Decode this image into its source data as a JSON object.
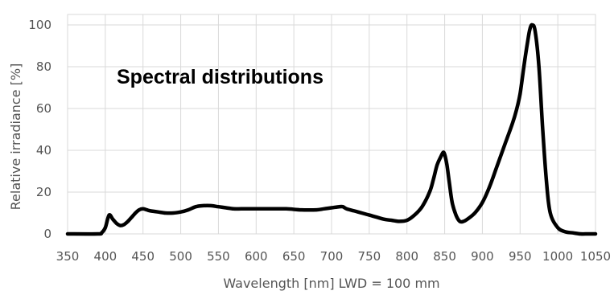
{
  "chart_data": {
    "type": "line",
    "title": "Spectral distributions",
    "xlabel": "Wavelength [nm] LWD = 100 mm",
    "ylabel": "Relative irradiance [%]",
    "xlim": [
      350,
      1050
    ],
    "ylim": [
      0,
      105
    ],
    "xticks": [
      350,
      400,
      450,
      500,
      550,
      600,
      650,
      700,
      750,
      800,
      850,
      900,
      950,
      1000,
      1050
    ],
    "yticks": [
      0,
      20,
      40,
      60,
      80,
      100
    ],
    "grid": true,
    "legend": "none",
    "line_color": "#000000",
    "grid_color": "#d9d9d9",
    "series": [
      {
        "x": [
          350,
          390,
          395,
          400,
          405,
          410,
          415,
          420,
          425,
          430,
          435,
          440,
          445,
          450,
          455,
          460,
          470,
          480,
          490,
          500,
          510,
          520,
          530,
          540,
          550,
          560,
          570,
          580,
          590,
          600,
          620,
          640,
          660,
          680,
          690,
          700,
          710,
          715,
          720,
          730,
          740,
          750,
          760,
          770,
          780,
          790,
          800,
          810,
          820,
          830,
          835,
          840,
          845,
          848,
          850,
          853,
          856,
          860,
          865,
          870,
          875,
          880,
          890,
          900,
          910,
          920,
          930,
          940,
          945,
          950,
          955,
          960,
          963,
          966,
          970,
          975,
          980,
          985,
          990,
          1000,
          1010,
          1020,
          1030,
          1040,
          1050
        ],
        "y": [
          0,
          0,
          0.5,
          3,
          9,
          7,
          5,
          4,
          4.5,
          6,
          8,
          10,
          11.5,
          12,
          11.5,
          11,
          10.5,
          10,
          10,
          10.5,
          11.5,
          13,
          13.5,
          13.5,
          13,
          12.5,
          12,
          12,
          12,
          12,
          12,
          12,
          11.5,
          11.5,
          12,
          12.5,
          13,
          13,
          12,
          11,
          10,
          9,
          8,
          7,
          6.5,
          6,
          6.5,
          9,
          13,
          20,
          26,
          33,
          37,
          39,
          38,
          33,
          25,
          15,
          9,
          6,
          6,
          7,
          10,
          15,
          23,
          33,
          43,
          53,
          59,
          67,
          80,
          92,
          98,
          100,
          97,
          80,
          50,
          25,
          10,
          3,
          1,
          0.5,
          0,
          0,
          0
        ]
      }
    ]
  }
}
